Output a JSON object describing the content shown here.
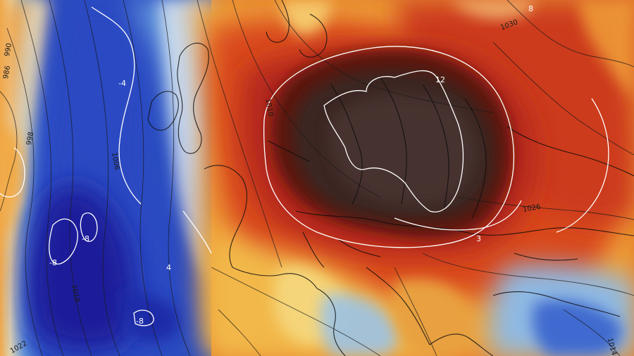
{
  "colors": {
    "very_cold": "#1c1f9a",
    "cold": "#2f55c8",
    "cool": "#6ea6e0",
    "near_zero": "#dfe9f2",
    "mild": "#f0c24a",
    "warm": "#e9792a",
    "hot": "#c8321a",
    "very_hot": "#6a1410",
    "extreme": "#3a2622",
    "isobar_line": "#1a1a1a",
    "isotherm_line": "#ffffff",
    "coastline": "#0d0d0d"
  },
  "isobar_labels": [
    {
      "id": "isobar-990",
      "text": "990"
    },
    {
      "id": "isobar-986",
      "text": "986"
    },
    {
      "id": "isobar-998",
      "text": "998"
    },
    {
      "id": "isobar-1006",
      "text": "1006"
    },
    {
      "id": "isobar-1010",
      "text": "1010"
    },
    {
      "id": "isobar-1030",
      "text": "1030"
    },
    {
      "id": "isobar-1026",
      "text": "1026"
    },
    {
      "id": "isobar-1018",
      "text": "1018"
    },
    {
      "id": "isobar-1022",
      "text": "1022"
    },
    {
      "id": "isobar-1014",
      "text": "1014"
    }
  ],
  "isotherm_labels": [
    {
      "id": "isotherm-minus-4",
      "text": "-4"
    },
    {
      "id": "isotherm-minus-8-a",
      "text": "-8"
    },
    {
      "id": "isotherm-minus-8-b",
      "text": "-8"
    },
    {
      "id": "isotherm-minus-8-c",
      "text": "-8"
    },
    {
      "id": "isotherm-12",
      "text": "12"
    },
    {
      "id": "isotherm-8",
      "text": "8"
    },
    {
      "id": "isotherm-3",
      "text": "3"
    },
    {
      "id": "isotherm-4",
      "text": "4"
    }
  ]
}
